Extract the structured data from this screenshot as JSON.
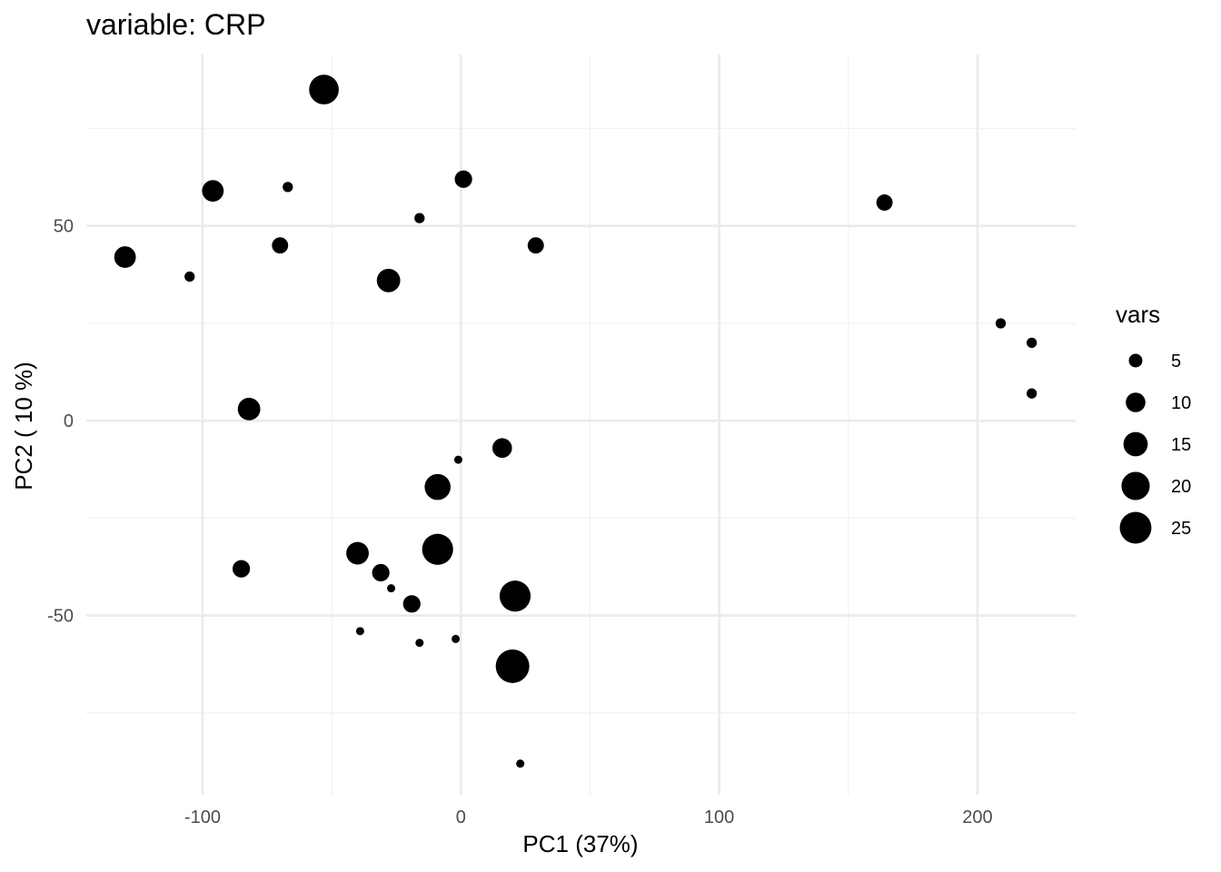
{
  "chart_data": {
    "type": "scatter",
    "title": "variable: CRP",
    "xlabel": "PC1 (37%)",
    "ylabel": "PC2 ( 10 %)",
    "xlim": [
      -145,
      238
    ],
    "ylim": [
      -96,
      94
    ],
    "x_ticks": [
      -100,
      0,
      100,
      200
    ],
    "x_tick_labels": [
      "-100",
      "0",
      "100",
      "200"
    ],
    "y_ticks": [
      -50,
      0,
      50
    ],
    "y_tick_labels": [
      "-50",
      "0",
      "50"
    ],
    "grid": true,
    "size_variable": "vars",
    "size_range": [
      3,
      28
    ],
    "legend": {
      "title": "vars",
      "position": "right",
      "values": [
        5,
        10,
        15,
        20,
        25
      ],
      "labels": [
        "5",
        "10",
        "15",
        "20",
        "25"
      ]
    },
    "points": [
      {
        "x": -53,
        "y": 85,
        "vars": 22
      },
      {
        "x": -96,
        "y": 59,
        "vars": 12
      },
      {
        "x": -67,
        "y": 60,
        "vars": 3
      },
      {
        "x": 1,
        "y": 62,
        "vars": 8
      },
      {
        "x": -16,
        "y": 52,
        "vars": 3
      },
      {
        "x": 164,
        "y": 56,
        "vars": 7
      },
      {
        "x": -130,
        "y": 42,
        "vars": 12
      },
      {
        "x": -70,
        "y": 45,
        "vars": 7
      },
      {
        "x": 29,
        "y": 45,
        "vars": 7
      },
      {
        "x": -105,
        "y": 37,
        "vars": 3
      },
      {
        "x": -28,
        "y": 36,
        "vars": 14
      },
      {
        "x": 209,
        "y": 25,
        "vars": 3
      },
      {
        "x": 221,
        "y": 20,
        "vars": 3
      },
      {
        "x": 221,
        "y": 7,
        "vars": 3
      },
      {
        "x": -82,
        "y": 3,
        "vars": 13
      },
      {
        "x": 16,
        "y": -7,
        "vars": 10
      },
      {
        "x": -1,
        "y": -10,
        "vars": 2
      },
      {
        "x": -9,
        "y": -17,
        "vars": 17
      },
      {
        "x": -40,
        "y": -34,
        "vars": 13
      },
      {
        "x": -9,
        "y": -33,
        "vars": 24
      },
      {
        "x": -85,
        "y": -38,
        "vars": 8
      },
      {
        "x": -31,
        "y": -39,
        "vars": 8
      },
      {
        "x": -27,
        "y": -43,
        "vars": 2
      },
      {
        "x": -19,
        "y": -47,
        "vars": 8
      },
      {
        "x": 21,
        "y": -45,
        "vars": 24
      },
      {
        "x": -39,
        "y": -54,
        "vars": 2
      },
      {
        "x": -16,
        "y": -57,
        "vars": 2
      },
      {
        "x": -2,
        "y": -56,
        "vars": 2
      },
      {
        "x": 20,
        "y": -63,
        "vars": 28
      },
      {
        "x": 23,
        "y": -88,
        "vars": 2
      }
    ]
  }
}
